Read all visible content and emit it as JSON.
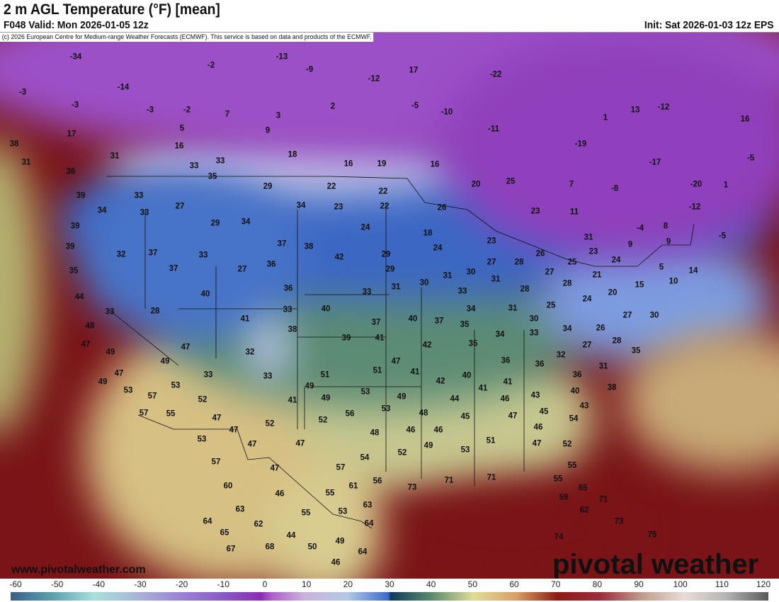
{
  "header": {
    "title": "2 m AGL Temperature (°F) [mean]",
    "valid": "F048 Valid: Mon 2026-01-05 12z",
    "init": "Init: Sat 2026-01-03 12z EPS"
  },
  "map": {
    "copyright": "(c) 2026 European Centre for Medium-range Weather Forecasts (ECMWF). This service is based on data and products of the ECMWF.",
    "website": "www.pivotalweather.com",
    "brand": "pivotal weather",
    "labels": [
      "-34",
      "-13",
      "-2",
      "-9",
      "17",
      "-22",
      "-3",
      "-14",
      "-12",
      "-3",
      "-3",
      "-2",
      "7",
      "3",
      "2",
      "-5",
      "-10",
      "13",
      "-12",
      "1",
      "16",
      "5",
      "9",
      "-11",
      "17",
      "16",
      "18",
      "-19",
      "31",
      "33",
      "33",
      "16",
      "19",
      "16",
      "-17",
      "-5",
      "36",
      "35",
      "22",
      "22",
      "20",
      "25",
      "7",
      "-8",
      "-20",
      "1",
      "29",
      "33",
      "39",
      "34",
      "33",
      "27",
      "34",
      "23",
      "22",
      "26",
      "23",
      "11",
      "-12",
      "39",
      "29",
      "34",
      "24",
      "18",
      "-4",
      "8",
      "-5",
      "39",
      "37",
      "38",
      "23",
      "31",
      "9",
      "9",
      "32",
      "37",
      "33",
      "36",
      "42",
      "29",
      "24",
      "26",
      "23",
      "24",
      "35",
      "37",
      "27",
      "29",
      "30",
      "31",
      "30",
      "27",
      "28",
      "27",
      "25",
      "21",
      "5",
      "14",
      "40",
      "36",
      "33",
      "31",
      "33",
      "31",
      "28",
      "28",
      "20",
      "15",
      "10",
      "44",
      "33",
      "28",
      "33",
      "40",
      "37",
      "40",
      "37",
      "34",
      "31",
      "25",
      "24",
      "30",
      "27",
      "26",
      "48",
      "41",
      "38",
      "39",
      "41",
      "35",
      "30",
      "33",
      "34",
      "34",
      "47",
      "49",
      "47",
      "49",
      "32",
      "42",
      "35",
      "28",
      "27",
      "35",
      "33",
      "47",
      "41",
      "36",
      "36",
      "32",
      "31",
      "47",
      "49",
      "51",
      "51",
      "40",
      "42",
      "36",
      "53",
      "57",
      "53",
      "33",
      "49",
      "53",
      "49",
      "41",
      "41",
      "43",
      "40",
      "38",
      "52",
      "49",
      "41",
      "44",
      "46",
      "43",
      "57",
      "55",
      "47",
      "56",
      "53",
      "48",
      "45",
      "47",
      "45",
      "46",
      "47",
      "52",
      "52",
      "48",
      "46",
      "46",
      "54",
      "53",
      "47",
      "47",
      "52",
      "49",
      "53",
      "51",
      "47",
      "52",
      "57",
      "47",
      "54",
      "57",
      "55",
      "60",
      "46",
      "61",
      "56",
      "73",
      "71",
      "71",
      "55",
      "65",
      "59",
      "55",
      "63",
      "55",
      "53",
      "63",
      "71",
      "62",
      "64",
      "62",
      "64",
      "73",
      "65",
      "44",
      "49",
      "75",
      "67",
      "68",
      "50",
      "64",
      "74",
      "46",
      "38",
      "31"
    ]
  },
  "colorbar": {
    "ticks": [
      "-60",
      "-50",
      "-40",
      "-30",
      "-20",
      "-10",
      "0",
      "10",
      "20",
      "30",
      "40",
      "50",
      "60",
      "70",
      "80",
      "90",
      "100",
      "110",
      "120"
    ],
    "range": [
      -60,
      120
    ],
    "colors": {
      "cold": "#3a5f8a",
      "freezing": "#3c6cc8",
      "warm": "#e0dc98",
      "hot": "#8c1c14",
      "max": "#5a5a5a"
    }
  }
}
